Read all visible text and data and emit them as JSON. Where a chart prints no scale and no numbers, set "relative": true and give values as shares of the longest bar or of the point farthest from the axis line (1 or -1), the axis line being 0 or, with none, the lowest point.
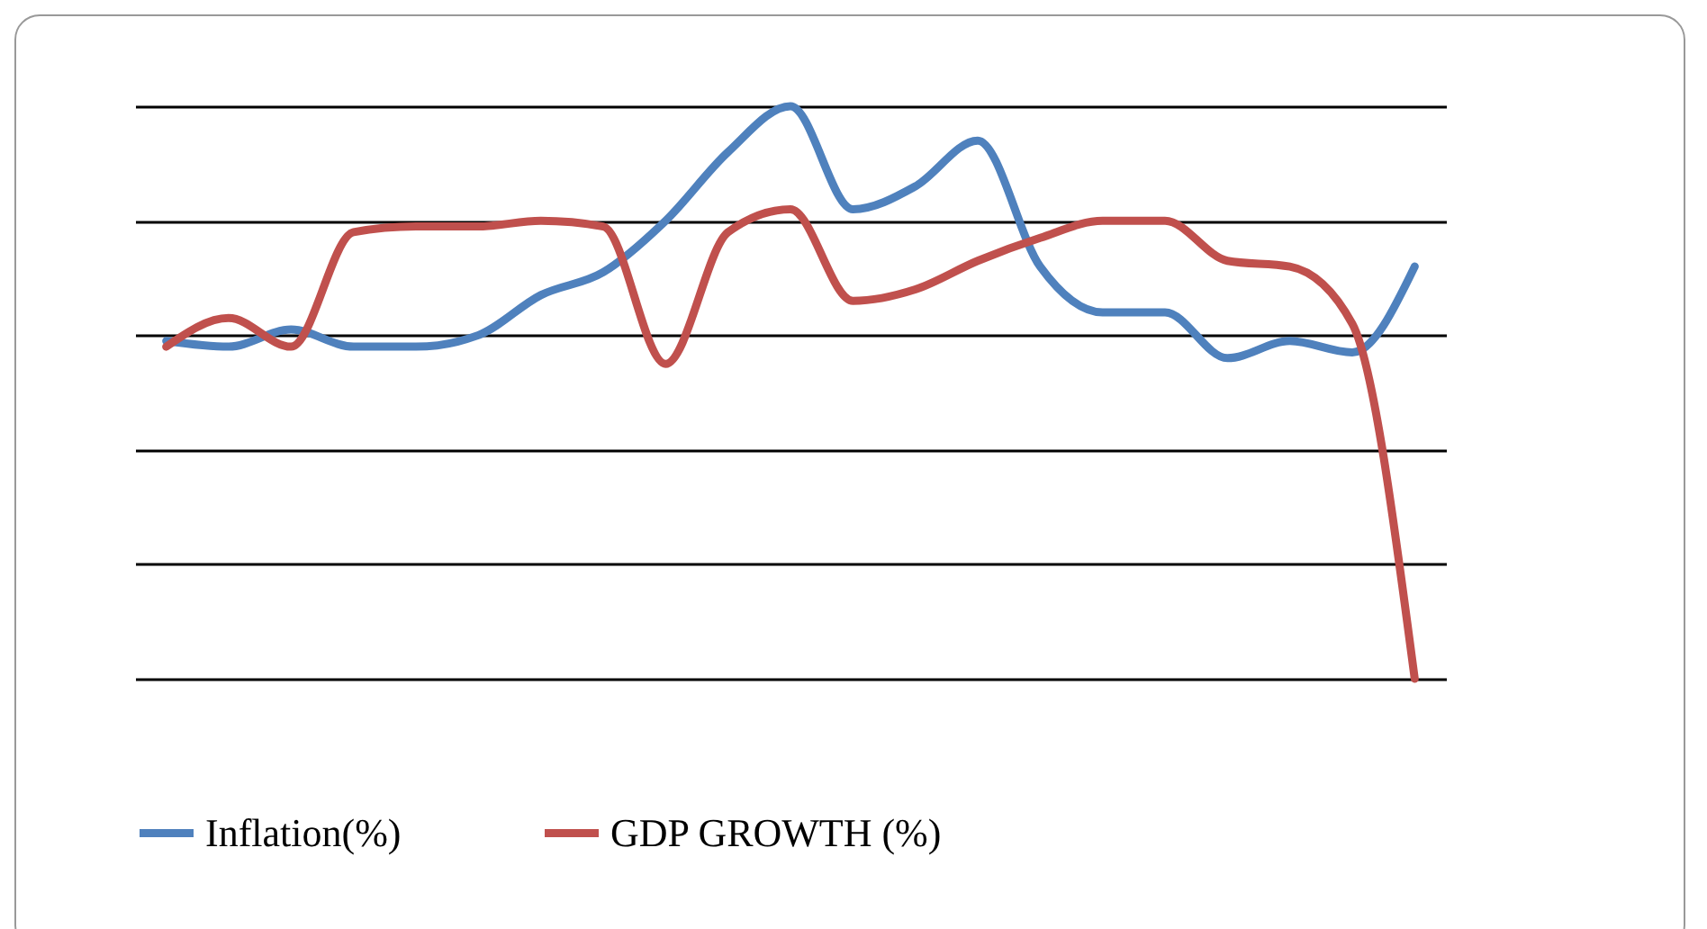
{
  "chart_data": {
    "type": "line",
    "relative": true,
    "grid": true,
    "legend": "bottom",
    "line_style": "solid",
    "categories": [
      null,
      null,
      null,
      null,
      null,
      null,
      null,
      null,
      null,
      null,
      null,
      null,
      null,
      null,
      null,
      null,
      null,
      null,
      null,
      null,
      null
    ],
    "series": [
      {
        "name": "Inflation(%)",
        "color": "#4f81bd",
        "values": [
          0.59,
          0.58,
          0.61,
          0.58,
          0.58,
          0.6,
          0.67,
          0.71,
          0.8,
          0.92,
          1,
          0.82,
          0.86,
          0.94,
          0.72,
          0.64,
          0.64,
          0.56,
          0.59,
          0.57,
          0.72
        ]
      },
      {
        "name": "GDP GROWTH (%)",
        "color": "#c0504d",
        "values": [
          0.58,
          0.63,
          0.58,
          0.78,
          0.79,
          0.79,
          0.8,
          0.79,
          0.55,
          0.78,
          0.82,
          0.66,
          0.68,
          0.73,
          0.77,
          0.8,
          0.8,
          0.73,
          0.72,
          0.62,
          0
        ]
      }
    ]
  }
}
